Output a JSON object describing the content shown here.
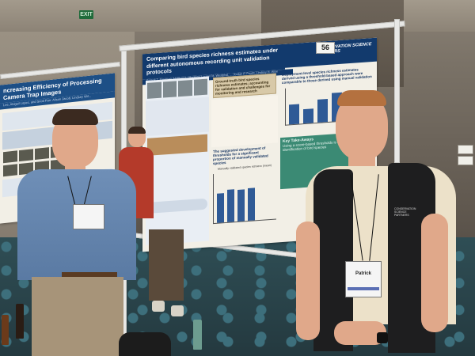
{
  "scene": {
    "exit_sign": "EXIT",
    "booth_number": "56"
  },
  "poster_left": {
    "title": "ncreasing Efficiency of Processing Camera Trap Images",
    "authors": "Lee, Abigail Lopez, and Scott Parr. Alison Jacob, Lindsey Wil..."
  },
  "poster_main": {
    "title": "Comparing bird species richness estimates under different autonomous recording unit validation protocols",
    "authors": "Patrick T. Freeman, Matthew L. Hopkins, Lauren M. Westphal, ... Jordan P. Pruett, Lindsey H. Wise",
    "logo": "CONSERVATION SCIENCE PARTNERS",
    "callout_left": "Ground-truth bird species richness estimates; accounting for validation and challenges for monitoring and research",
    "section_threshold": "The suggested development of thresholds for a significant proportion of manually validated species",
    "callout_right": "Deployment-level species richness estimates derived using a threshold-based approach were comparable to those derived using manual validation",
    "key_takeaways_title": "Key Take-Aways",
    "key_takeaways_text": "Using a score-based thresholds is effective for the identification of bird species",
    "chart_note": "Manually validated species richness (mean)"
  },
  "people": {
    "left_badge": "",
    "right_badge": "Patrick",
    "right_vest_logo": "CONSERVATION SCIENCE PARTNERS"
  }
}
